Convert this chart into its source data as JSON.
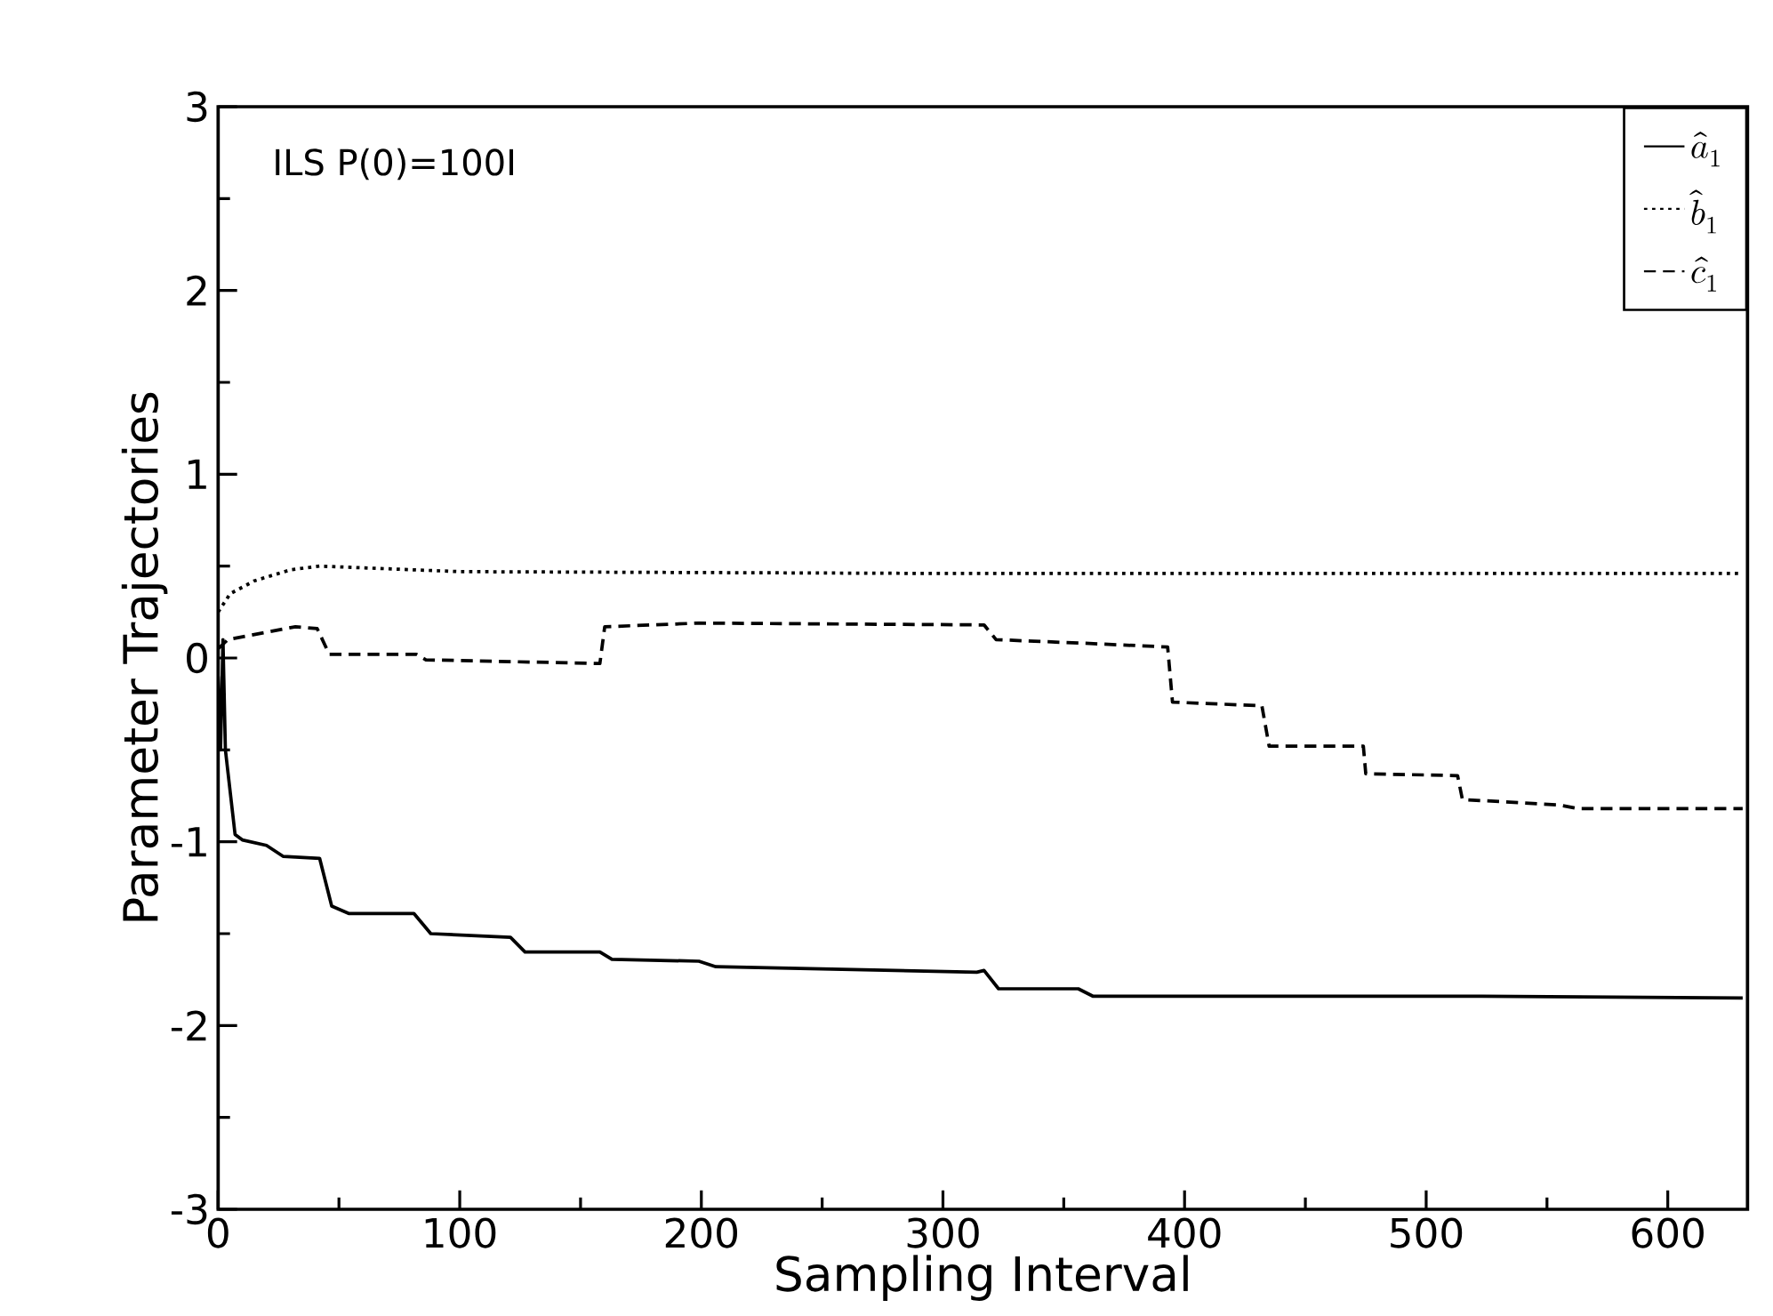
{
  "chart_data": {
    "type": "line",
    "xlabel": "Sampling Interval",
    "ylabel": "Parameter Trajectories",
    "annotations": [
      "ILS   P(0)=100I"
    ],
    "xlim": [
      0,
      633
    ],
    "ylim": [
      -3,
      3
    ],
    "xticks": [
      0,
      100,
      200,
      300,
      400,
      500,
      600
    ],
    "yticks": [
      -3,
      -2,
      -1,
      0,
      1,
      2,
      3
    ],
    "grid": false,
    "legend": "top right",
    "marker": "none",
    "series": [
      {
        "name": "\\hat{a}_{1}",
        "color": "#000000",
        "line_style": "solid",
        "x": [
          0,
          1,
          2,
          3,
          5,
          7,
          10,
          20,
          27,
          42,
          47,
          54,
          81,
          88,
          121,
          127,
          158,
          163,
          199,
          206,
          314,
          317,
          323,
          356,
          362,
          523,
          631
        ],
        "values": [
          -0.1,
          -0.5,
          0.1,
          -0.5,
          -0.73,
          -0.96,
          -0.99,
          -1.02,
          -1.08,
          -1.09,
          -1.35,
          -1.39,
          -1.39,
          -1.5,
          -1.52,
          -1.6,
          -1.6,
          -1.64,
          -1.65,
          -1.68,
          -1.71,
          -1.7,
          -1.8,
          -1.8,
          -1.84,
          -1.84,
          -1.85
        ]
      },
      {
        "name": "\\hat{b}_{1}",
        "color": "#000000",
        "line_style": "dotted",
        "x": [
          0,
          5,
          15,
          30,
          42,
          100,
          300,
          631
        ],
        "values": [
          0.25,
          0.35,
          0.42,
          0.48,
          0.5,
          0.47,
          0.46,
          0.46
        ]
      },
      {
        "name": "\\hat{c}_{1}",
        "color": "#000000",
        "line_style": "dashed",
        "x": [
          0,
          4,
          32,
          41,
          46,
          82,
          86,
          158,
          160,
          199,
          317,
          322,
          359,
          393,
          395,
          432,
          435,
          474,
          475,
          513,
          515,
          555,
          563,
          631
        ],
        "values": [
          0.05,
          0.1,
          0.17,
          0.16,
          0.02,
          0.02,
          -0.01,
          -0.03,
          0.17,
          0.19,
          0.18,
          0.1,
          0.08,
          0.06,
          -0.24,
          -0.26,
          -0.48,
          -0.48,
          -0.63,
          -0.64,
          -0.77,
          -0.8,
          -0.82,
          -0.82
        ]
      }
    ]
  }
}
